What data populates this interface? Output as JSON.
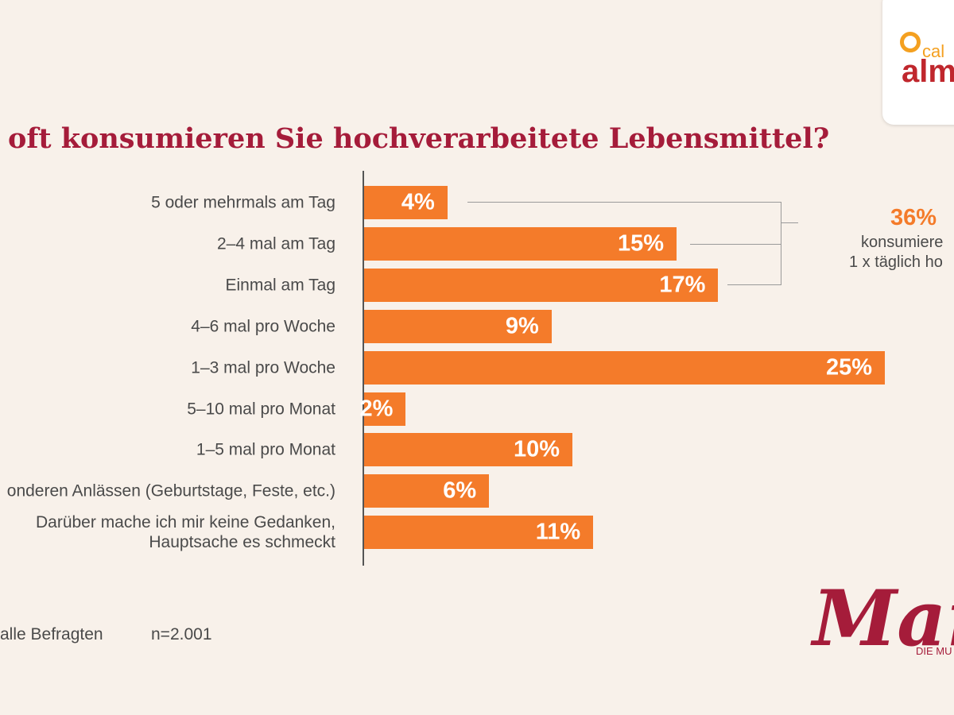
{
  "chart_data": {
    "type": "bar",
    "orientation": "horizontal",
    "title": "oft konsumieren Sie hochverarbeitete Lebensmittel?",
    "categories": [
      "5 oder mehrmals am Tag",
      "2–4 mal am Tag",
      "Einmal am Tag",
      "4–6 mal pro Woche",
      "1–3 mal pro Woche",
      "5–10 mal pro Monat",
      "1–5 mal pro Monat",
      "onderen Anlässen (Geburtstage, Feste, etc.)",
      "Darüber mache ich mir keine Gedanken,\nHauptsache es schmeckt"
    ],
    "values": [
      4,
      15,
      17,
      9,
      25,
      2,
      10,
      6,
      11
    ],
    "value_labels": [
      "4%",
      "15%",
      "17%",
      "9%",
      "25%",
      "2%",
      "10%",
      "6%",
      "11%"
    ],
    "color": "#f47b2a",
    "xlim": [
      0,
      25
    ],
    "annotation": {
      "value": "36%",
      "lines": [
        "konsumiere",
        "1 x täglich ho"
      ]
    },
    "footer": {
      "base": "alle Befragten",
      "n": "n=2.001"
    },
    "logos": {
      "top_small": "cal",
      "top_large": "alm",
      "bottom_large": "Mar",
      "bottom_small": "DIE MU"
    }
  }
}
